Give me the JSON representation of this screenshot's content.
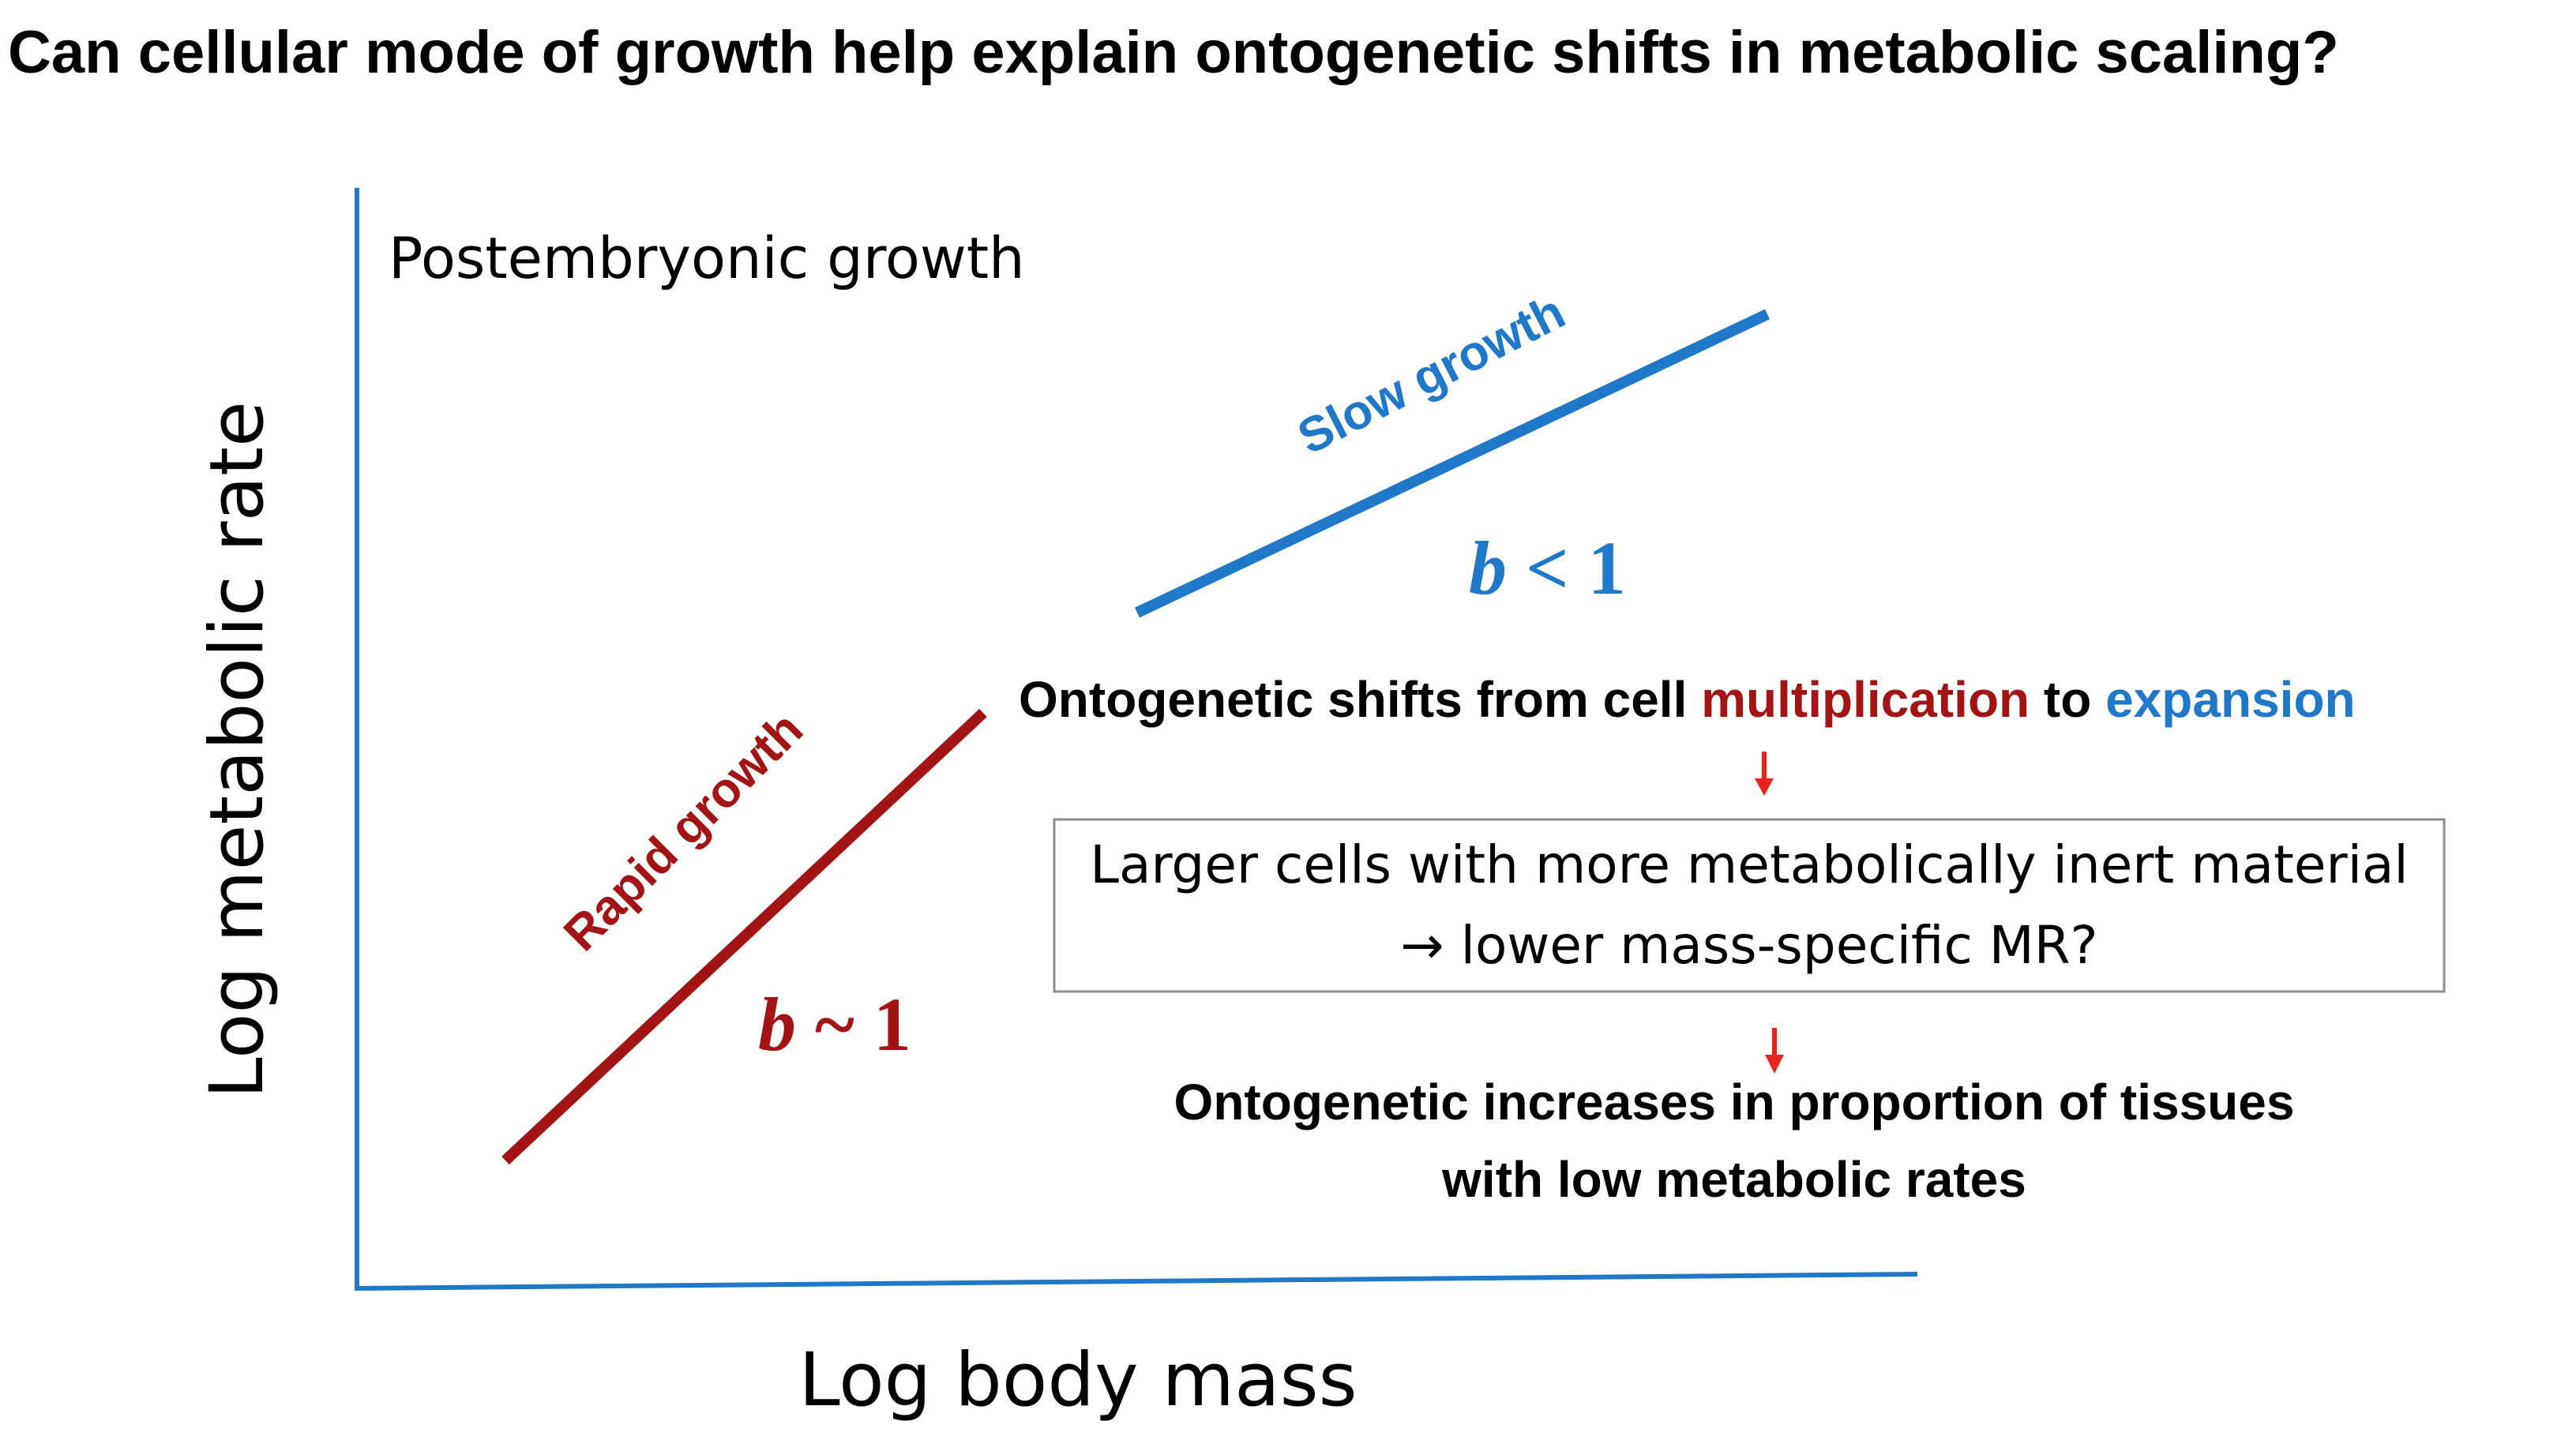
{
  "title": "Can cellular mode of growth help explain ontogenetic shifts in metabolic scaling?",
  "chart_data": {
    "type": "line",
    "title": "Postembryonic growth",
    "xlabel": "Log body mass",
    "ylabel": "Log metabolic rate",
    "series": [
      {
        "name": "Rapid growth",
        "exponent_var": "b",
        "exponent_rel": " ~ 1",
        "color": "#a31515"
      },
      {
        "name": "Slow growth",
        "exponent_var": "b",
        "exponent_rel": " < 1",
        "color": "#1f78c8"
      }
    ]
  },
  "annotations": {
    "shift_prefix": "Ontogenetic shifts from cell ",
    "shift_multiplication": "multiplication",
    "shift_to": " to ",
    "shift_expansion": "expansion",
    "box_line1": "Larger cells with more metabolically inert material",
    "box_line2": "→ lower mass-specific MR?",
    "increase_line1": "Ontogenetic increases in proportion of tissues",
    "increase_line2": "with low metabolic rates"
  },
  "colors": {
    "axis": "#1f78c8",
    "red": "#a31515",
    "blue": "#1f78c8",
    "arrow": "#e8241c",
    "text": "#000000",
    "box_border": "#8c8c8c"
  }
}
